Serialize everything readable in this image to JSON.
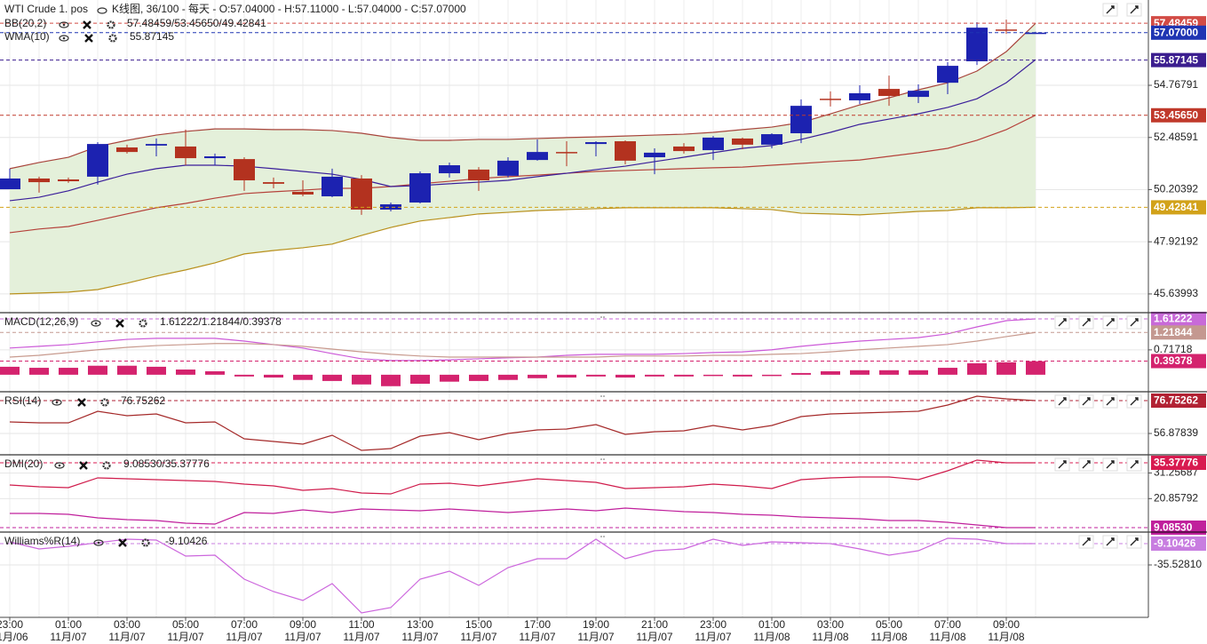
{
  "chart_data": [
    {
      "type": "candlestick",
      "title": "WTI Crude 1. pos",
      "subtitle": "K线图, 36/100 - 每天 - O:57.04000 - H:57.11000 - L:57.04000 - C:57.07000",
      "categories": [
        "23:00",
        null,
        "01:00",
        null,
        "03:00",
        null,
        "05:00",
        null,
        "07:00",
        null,
        "09:00",
        null,
        "11:00",
        null,
        "13:00",
        null,
        "15:00",
        null,
        "17:00",
        null,
        "19:00",
        null,
        "21:00",
        null,
        "23:00",
        null,
        "01:00",
        null,
        "03:00",
        null,
        "05:00",
        null,
        "07:00",
        null,
        "09:00",
        null
      ],
      "dates": [
        "11月/06",
        null,
        "11月/07",
        null,
        "11月/07",
        null,
        "11月/07",
        null,
        "11月/07",
        null,
        "11月/07",
        null,
        "11月/07",
        null,
        "11月/07",
        null,
        "11月/07",
        null,
        "11月/07",
        null,
        "11月/07",
        null,
        "11月/07",
        null,
        "11月/07",
        null,
        "11月/08",
        null,
        "11月/08",
        null,
        "11月/08",
        null,
        "11月/08",
        null,
        "11月/08",
        null
      ],
      "open": [
        50.22,
        50.69,
        50.65,
        50.77,
        52.05,
        52.13,
        52.09,
        51.58,
        51.54,
        50.53,
        50.11,
        49.91,
        50.69,
        49.33,
        49.64,
        50.92,
        51.08,
        50.81,
        51.5,
        51.85,
        52.2,
        52.32,
        51.62,
        52.09,
        51.93,
        52.44,
        52.17,
        52.67,
        54.18,
        54.11,
        54.61,
        54.26,
        54.88,
        55.82,
        57.21,
        57.04
      ],
      "high": [
        51.12,
        50.77,
        50.73,
        52.28,
        52.17,
        52.44,
        52.83,
        51.78,
        51.62,
        50.73,
        50.61,
        51.12,
        50.84,
        49.64,
        51.0,
        51.39,
        51.19,
        51.62,
        52.4,
        52.32,
        52.32,
        52.36,
        52.01,
        52.24,
        52.55,
        52.48,
        52.67,
        54.15,
        54.5,
        54.77,
        55.19,
        54.81,
        55.78,
        57.53,
        57.64,
        57.11
      ],
      "low": [
        50.22,
        50.07,
        50.5,
        50.42,
        51.78,
        51.66,
        51.27,
        51.27,
        50.15,
        50.26,
        49.91,
        49.87,
        49.1,
        49.25,
        49.6,
        50.73,
        50.15,
        50.73,
        51.47,
        51.23,
        51.66,
        51.31,
        50.88,
        51.78,
        51.5,
        51.97,
        52.01,
        52.24,
        53.84,
        53.95,
        53.87,
        53.99,
        54.38,
        55.66,
        57.02,
        57.04
      ],
      "close": [
        50.69,
        50.53,
        50.57,
        52.2,
        51.85,
        52.2,
        51.58,
        51.66,
        50.61,
        50.46,
        49.99,
        50.77,
        49.33,
        49.56,
        50.92,
        51.27,
        50.61,
        51.47,
        51.85,
        51.82,
        52.28,
        51.47,
        51.82,
        51.89,
        52.48,
        52.17,
        52.63,
        53.87,
        54.15,
        54.42,
        54.3,
        54.53,
        55.62,
        57.29,
        57.18,
        57.07
      ],
      "up_color": "#1c22b0",
      "down_color": "#b3321f",
      "overlays": [
        {
          "name": "BB(20,2)",
          "readout": "57.48459/53.45650/49.42841",
          "fill": "#e4f0da",
          "series": [
            {
              "color": "#a8453c",
              "values": [
                51.12,
                51.39,
                51.62,
                52.09,
                52.36,
                52.59,
                52.75,
                52.86,
                52.86,
                52.83,
                52.83,
                52.79,
                52.67,
                52.48,
                52.36,
                52.36,
                52.4,
                52.4,
                52.44,
                52.48,
                52.51,
                52.55,
                52.59,
                52.63,
                52.71,
                52.83,
                52.94,
                53.14,
                53.52,
                53.91,
                54.22,
                54.57,
                54.88,
                55.39,
                56.24,
                57.48
              ]
            },
            {
              "color": "#b5413a",
              "values": [
                48.32,
                48.48,
                48.59,
                48.86,
                49.14,
                49.41,
                49.6,
                49.83,
                50.03,
                50.11,
                50.18,
                50.26,
                50.26,
                50.34,
                50.46,
                50.57,
                50.69,
                50.77,
                50.84,
                50.92,
                51.0,
                51.04,
                51.08,
                51.12,
                51.16,
                51.19,
                51.27,
                51.35,
                51.43,
                51.5,
                51.66,
                51.82,
                52.01,
                52.36,
                52.83,
                53.46
              ]
            },
            {
              "color": "#b8901c",
              "values": [
                45.64,
                45.68,
                45.72,
                45.83,
                46.11,
                46.42,
                46.69,
                47.0,
                47.39,
                47.54,
                47.66,
                47.82,
                48.2,
                48.55,
                48.83,
                48.98,
                49.14,
                49.21,
                49.29,
                49.33,
                49.37,
                49.41,
                49.41,
                49.41,
                49.41,
                49.37,
                49.33,
                49.17,
                49.14,
                49.1,
                49.17,
                49.25,
                49.29,
                49.41,
                49.41,
                49.43
              ]
            }
          ]
        },
        {
          "name": "WMA(10)",
          "readout": "55.87145",
          "series": [
            {
              "color": "#3a1e9a",
              "values": [
                49.72,
                49.87,
                50.15,
                50.53,
                50.88,
                51.12,
                51.27,
                51.27,
                51.23,
                51.12,
                51.0,
                50.88,
                50.65,
                50.34,
                50.38,
                50.46,
                50.53,
                50.61,
                50.77,
                50.92,
                51.08,
                51.23,
                51.43,
                51.62,
                51.82,
                52.01,
                52.13,
                52.4,
                52.71,
                53.06,
                53.29,
                53.52,
                53.8,
                54.18,
                54.88,
                55.89
              ]
            }
          ]
        }
      ],
      "ylim": [
        44.82,
        58.5
      ],
      "yticks": [
        54.76791,
        52.48591,
        50.20392,
        47.92192,
        45.63993
      ],
      "grid": true,
      "tags": [
        {
          "value": 57.48459,
          "color": "#d24b45"
        },
        {
          "value": 57.07,
          "label": "57.07000",
          "color": "#1f35b3"
        },
        {
          "value": 55.87145,
          "color": "#3b1d8f"
        },
        {
          "value": 53.4565,
          "label": "53.45650",
          "color": "#c0392b"
        },
        {
          "value": 49.42841,
          "color": "#d2a21a"
        }
      ]
    },
    {
      "type": "line",
      "title": "MACD(12,26,9)",
      "readout": "1.61222/1.21844/0.39378",
      "series": [
        {
          "color": "#cc5ad8",
          "values": [
            0.77,
            0.82,
            0.87,
            0.95,
            1.02,
            1.05,
            1.05,
            1.05,
            0.97,
            0.87,
            0.77,
            0.61,
            0.46,
            0.41,
            0.41,
            0.43,
            0.46,
            0.49,
            0.51,
            0.56,
            0.59,
            0.59,
            0.59,
            0.61,
            0.64,
            0.66,
            0.72,
            0.82,
            0.9,
            0.97,
            1.02,
            1.07,
            1.18,
            1.38,
            1.56,
            1.61
          ]
        },
        {
          "color": "#c89a8e",
          "values": [
            0.51,
            0.56,
            0.64,
            0.72,
            0.79,
            0.84,
            0.87,
            0.9,
            0.9,
            0.87,
            0.82,
            0.74,
            0.66,
            0.59,
            0.54,
            0.51,
            0.51,
            0.51,
            0.51,
            0.51,
            0.51,
            0.54,
            0.54,
            0.54,
            0.56,
            0.56,
            0.59,
            0.61,
            0.66,
            0.72,
            0.77,
            0.82,
            0.87,
            0.97,
            1.1,
            1.22
          ]
        },
        {
          "type": "bar",
          "color": "#d4236e",
          "values": [
            0.23,
            0.2,
            0.2,
            0.26,
            0.26,
            0.23,
            0.15,
            0.1,
            -0.05,
            -0.08,
            -0.15,
            -0.18,
            -0.28,
            -0.33,
            -0.26,
            -0.2,
            -0.18,
            -0.15,
            -0.1,
            -0.08,
            -0.05,
            -0.08,
            -0.05,
            -0.05,
            -0.03,
            -0.05,
            -0.03,
            0.05,
            0.1,
            0.13,
            0.13,
            0.13,
            0.2,
            0.33,
            0.36,
            0.39
          ]
        }
      ],
      "ylim": [
        -0.49,
        1.79
      ],
      "yticks": [
        0.71718
      ],
      "grid": true,
      "tags": [
        {
          "value": 1.61222,
          "color": "#c86ad8"
        },
        {
          "value": 1.21844,
          "color": "#c49890"
        },
        {
          "value": 0.39378,
          "color": "#d4236e"
        }
      ]
    },
    {
      "type": "line",
      "title": "RSI(14)",
      "readout": "76.75262",
      "series": [
        {
          "color": "#a52a2a",
          "values": [
            63.86,
            63.32,
            63.32,
            70.3,
            67.62,
            68.69,
            63.32,
            63.86,
            53.65,
            52.04,
            50.43,
            55.8,
            46.67,
            47.74,
            55.26,
            57.41,
            53.12,
            56.88,
            59.02,
            59.56,
            62.25,
            56.34,
            57.95,
            58.49,
            61.71,
            59.02,
            61.71,
            67.08,
            68.69,
            69.23,
            69.77,
            70.3,
            74.06,
            79.44,
            77.82,
            76.75
          ]
        }
      ],
      "ylim": [
        43.99,
        82.12
      ],
      "yticks": [
        56.87839
      ],
      "grid": true,
      "tags": [
        {
          "value": 76.75262,
          "color": "#b22234"
        }
      ]
    },
    {
      "type": "line",
      "title": "DMI(20)",
      "readout": "9.08530/35.37776",
      "series": [
        {
          "color": "#d01c4c",
          "values": [
            26.38,
            25.66,
            25.3,
            29.26,
            28.9,
            28.54,
            28.18,
            27.82,
            26.74,
            26.02,
            24.21,
            24.94,
            23.13,
            22.77,
            26.74,
            27.1,
            26.02,
            27.46,
            28.9,
            28.18,
            27.46,
            24.94,
            25.3,
            25.66,
            26.74,
            26.02,
            24.94,
            28.54,
            29.26,
            29.62,
            29.62,
            28.54,
            32.14,
            36.46,
            35.38,
            35.38
          ]
        },
        {
          "color": "#c0209c",
          "values": [
            14.85,
            14.85,
            14.49,
            13.05,
            12.33,
            11.97,
            10.89,
            10.53,
            15.21,
            14.85,
            16.29,
            15.21,
            16.65,
            16.29,
            15.93,
            16.65,
            15.93,
            15.21,
            15.93,
            16.65,
            15.93,
            17.01,
            16.29,
            15.57,
            15.21,
            14.49,
            14.13,
            13.41,
            13.05,
            12.69,
            11.97,
            11.97,
            11.25,
            10.17,
            9.09,
            9.09
          ]
        }
      ],
      "ylim": [
        7.29,
        38.62
      ],
      "yticks": [
        31.25687,
        20.85792
      ],
      "grid": true,
      "tags": [
        {
          "value": 35.37776,
          "color": "#d81b50"
        },
        {
          "value": 9.0853,
          "label": "9.08530",
          "color": "#c0209c"
        }
      ]
    },
    {
      "type": "line",
      "title": "Williams%R(14)",
      "readout": "-9.10426",
      "series": [
        {
          "color": "#cc66dd",
          "values": [
            -6.9,
            -15.71,
            -12.4,
            -8.0,
            -3.6,
            -4.7,
            -24.51,
            -23.41,
            -53.14,
            -68.55,
            -79.56,
            -58.64,
            -94.97,
            -88.37,
            -53.14,
            -43.23,
            -60.85,
            -38.83,
            -27.82,
            -27.82,
            -3.6,
            -27.82,
            -17.91,
            -15.71,
            -3.6,
            -11.3,
            -6.9,
            -8.0,
            -9.1,
            -15.71,
            -23.41,
            -17.91,
            -2.5,
            -3.6,
            -9.1,
            -9.1
          ]
        }
      ],
      "ylim": [
        -100.48,
        5.21
      ],
      "yticks": [
        {
          "value": -35.5281,
          "label": "-35.52810"
        }
      ],
      "grid": true,
      "tags": [
        {
          "value": -9.10426,
          "color": "#c87de0"
        }
      ]
    }
  ]
}
